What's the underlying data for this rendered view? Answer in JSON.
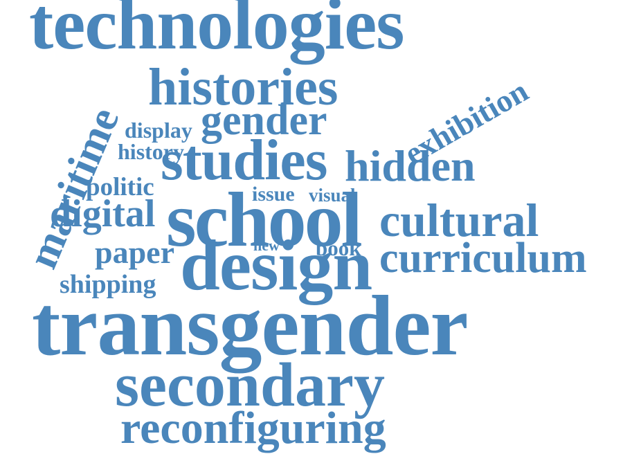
{
  "colors": {
    "word": "#4a86bb",
    "background": "#ffffff"
  },
  "words": {
    "technologies": "technologies",
    "histories": "histories",
    "gender": "gender",
    "display": "display",
    "history": "history",
    "studies": "studies",
    "hidden": "hidden",
    "exhibition": "exhibition",
    "maritime": "maritime",
    "politic": "politic",
    "issue": "issue",
    "visual": "visual",
    "digital": "digital",
    "school": "school",
    "cultural": "cultural",
    "new": "new",
    "book": "book",
    "paper": "paper",
    "design": "design",
    "curriculum": "curriculum",
    "shipping": "shipping",
    "transgender": "transgender",
    "secondary": "secondary",
    "reconfiguring": "reconfiguring"
  }
}
